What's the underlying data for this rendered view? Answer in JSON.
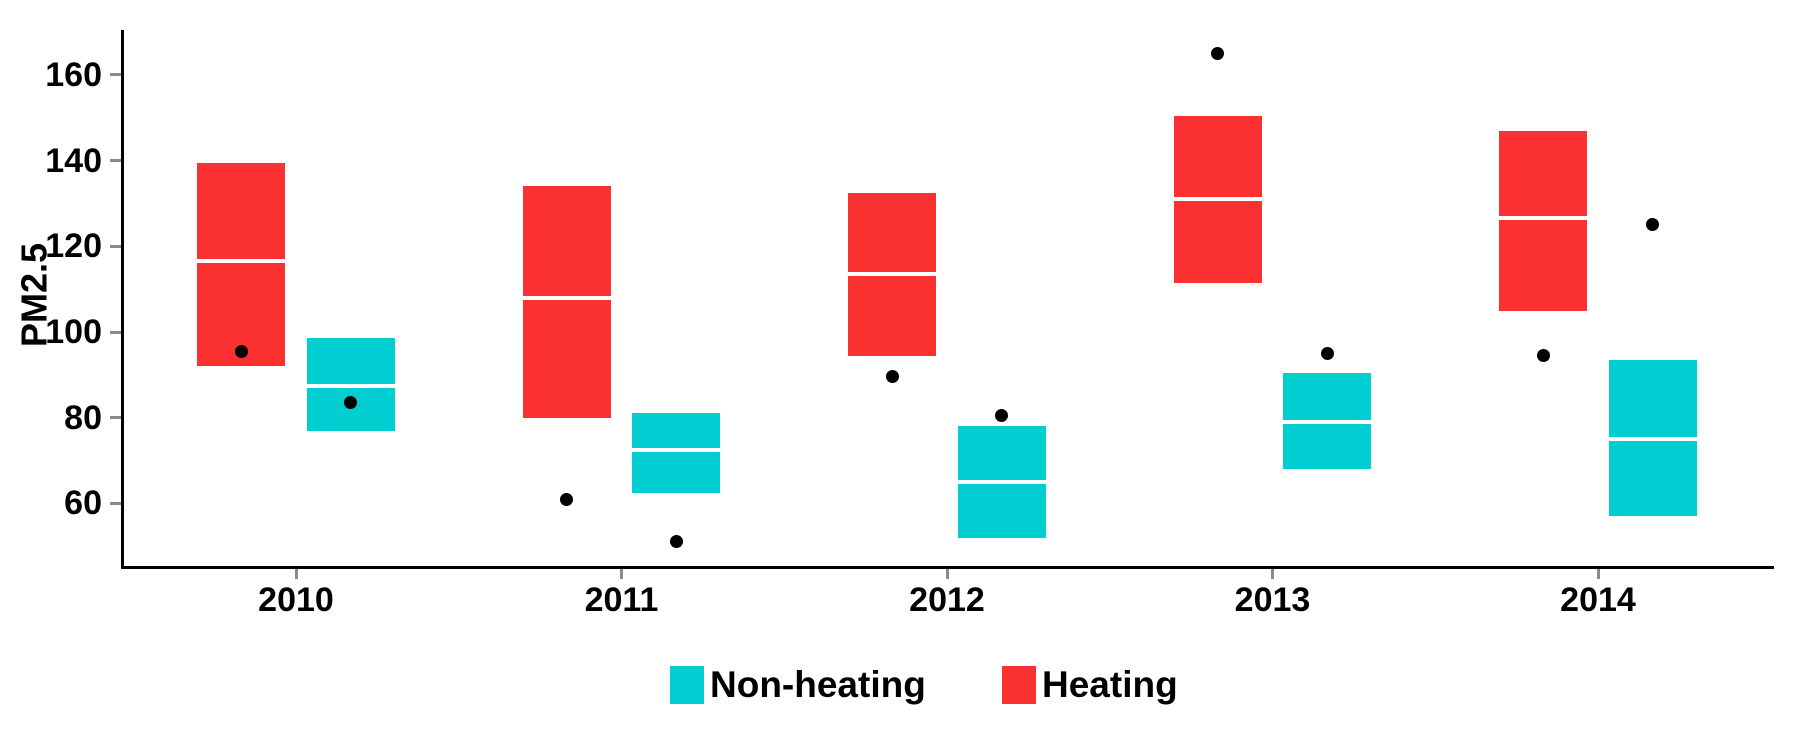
{
  "chart_data": {
    "type": "bar",
    "variant": "floating-crossbar-boxes (lower/median/upper) with outlier points, dodged by group",
    "title": "",
    "xlabel": "",
    "ylabel": "PM2.5",
    "categories": [
      "2010",
      "2011",
      "2012",
      "2013",
      "2014"
    ],
    "y_ticks": [
      60,
      80,
      100,
      120,
      140,
      160
    ],
    "ylim": [
      45,
      170.5
    ],
    "grid": "off",
    "legend_position": "bottom",
    "colors": {
      "heating": "#FB3030",
      "non_heating": "#00CED1",
      "median_line": "#FFFFFF",
      "outlier_point": "#000000",
      "axis": "#000000",
      "tick_mark": "#8A8A8A",
      "text": "#000000",
      "background": "#FFFFFF"
    },
    "series": [
      {
        "name": "Heating",
        "color": "#FB3030",
        "dodge": "left",
        "boxes": [
          {
            "category": "2010",
            "lower": 92,
            "median": 116.5,
            "upper": 139.5
          },
          {
            "category": "2011",
            "lower": 80,
            "median": 108,
            "upper": 134
          },
          {
            "category": "2012",
            "lower": 94.5,
            "median": 113.5,
            "upper": 132.5
          },
          {
            "category": "2013",
            "lower": 111.5,
            "median": 131,
            "upper": 150.5
          },
          {
            "category": "2014",
            "lower": 105,
            "median": 126.5,
            "upper": 147
          }
        ],
        "points": [
          {
            "category": "2010",
            "value": 95.5
          },
          {
            "category": "2011",
            "value": 61
          },
          {
            "category": "2012",
            "value": 89.5
          },
          {
            "category": "2013",
            "value": 165
          },
          {
            "category": "2014",
            "value": 94.5
          }
        ]
      },
      {
        "name": "Non-heating",
        "color": "#00CED1",
        "dodge": "right",
        "boxes": [
          {
            "category": "2010",
            "lower": 77,
            "median": 87.5,
            "upper": 98.5
          },
          {
            "category": "2011",
            "lower": 62.5,
            "median": 72.5,
            "upper": 81
          },
          {
            "category": "2012",
            "lower": 52,
            "median": 65,
            "upper": 78
          },
          {
            "category": "2013",
            "lower": 68,
            "median": 79,
            "upper": 90.5
          },
          {
            "category": "2014",
            "lower": 57,
            "median": 75,
            "upper": 93.5
          }
        ],
        "points": [
          {
            "category": "2010",
            "value": 83.5
          },
          {
            "category": "2011",
            "value": 51
          },
          {
            "category": "2012",
            "value": 80.5
          },
          {
            "category": "2013",
            "value": 95
          },
          {
            "category": "2014",
            "value": 125
          }
        ]
      }
    ]
  },
  "legend": {
    "entries": [
      {
        "label": "Non-heating",
        "color": "#00CED1"
      },
      {
        "label": "Heating",
        "color": "#FB3030"
      }
    ]
  }
}
